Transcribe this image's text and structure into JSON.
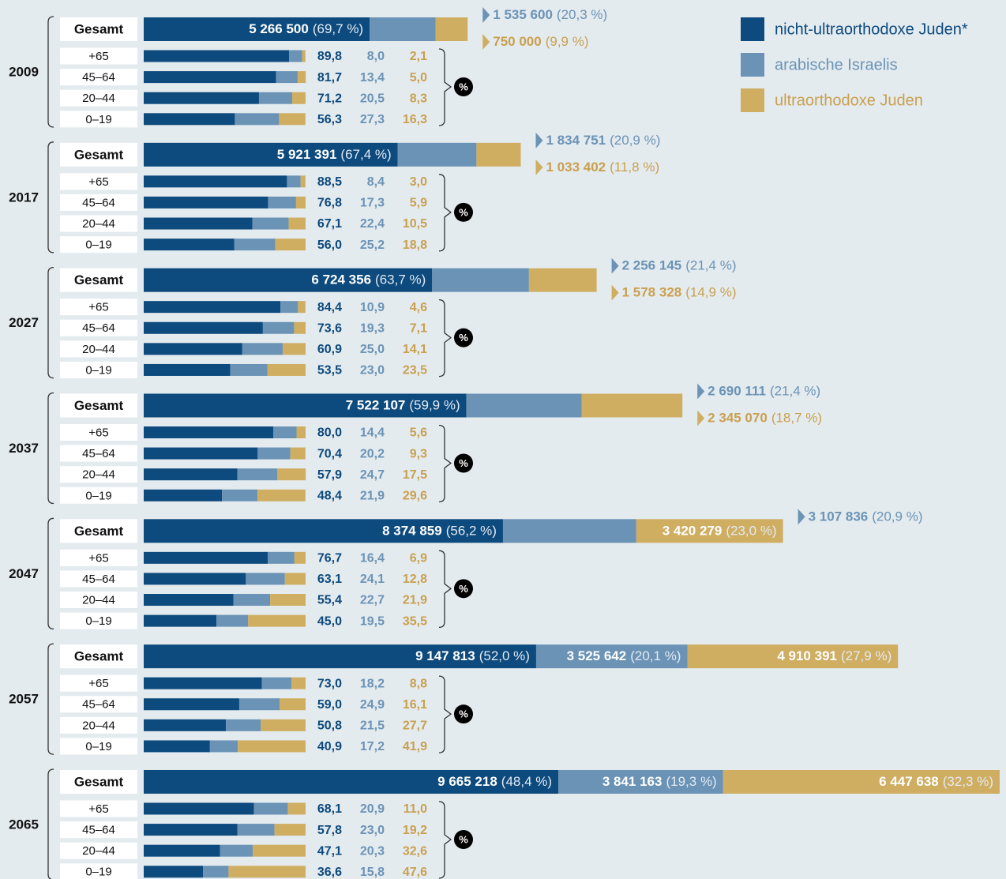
{
  "chart_data": {
    "type": "stacked_barh",
    "series": [
      {
        "name": "nicht-ultraorthodoxe Juden*",
        "color": "#0d4a7d",
        "text_color": "#0d4a7d"
      },
      {
        "name": "arabische Israelis",
        "color": "#6a93b6",
        "text_color": "#6a93b6"
      },
      {
        "name": "ultraorthodoxe Juden",
        "color": "#cfae62",
        "text_color": "#c9a04f"
      }
    ],
    "total_label": "Gesamt",
    "age_groups": [
      "+65",
      "45–64",
      "20–44",
      "0–19"
    ],
    "unit_badge": "%",
    "years": [
      {
        "year": "2009",
        "totals": [
          5266500,
          1535600,
          750000
        ],
        "total_labels": [
          "5 266 500",
          "1 535 600",
          "750 000"
        ],
        "shares": [
          69.7,
          20.3,
          9.9
        ],
        "share_labels": [
          "(69,7 %)",
          "(20,3 %)",
          "(9,9 %)"
        ],
        "ages": [
          {
            "values": [
              89.8,
              8.0,
              2.1
            ],
            "value_labels": [
              "89,8",
              "8,0",
              "2,1"
            ]
          },
          {
            "values": [
              81.7,
              13.4,
              5.0
            ],
            "value_labels": [
              "81,7",
              "13,4",
              "5,0"
            ]
          },
          {
            "values": [
              71.2,
              20.5,
              8.3
            ],
            "value_labels": [
              "71,2",
              "20,5",
              "8,3"
            ]
          },
          {
            "values": [
              56.3,
              27.3,
              16.3
            ],
            "value_labels": [
              "56,3",
              "27,3",
              "16,3"
            ]
          }
        ]
      },
      {
        "year": "2017",
        "totals": [
          5921391,
          1834751,
          1033402
        ],
        "total_labels": [
          "5 921 391",
          "1 834 751",
          "1 033 402"
        ],
        "shares": [
          67.4,
          20.9,
          11.8
        ],
        "share_labels": [
          "(67,4 %)",
          "(20,9 %)",
          "(11,8 %)"
        ],
        "ages": [
          {
            "values": [
              88.5,
              8.4,
              3.0
            ],
            "value_labels": [
              "88,5",
              "8,4",
              "3,0"
            ]
          },
          {
            "values": [
              76.8,
              17.3,
              5.9
            ],
            "value_labels": [
              "76,8",
              "17,3",
              "5,9"
            ]
          },
          {
            "values": [
              67.1,
              22.4,
              10.5
            ],
            "value_labels": [
              "67,1",
              "22,4",
              "10,5"
            ]
          },
          {
            "values": [
              56.0,
              25.2,
              18.8
            ],
            "value_labels": [
              "56,0",
              "25,2",
              "18,8"
            ]
          }
        ]
      },
      {
        "year": "2027",
        "totals": [
          6724356,
          2256145,
          1578328
        ],
        "total_labels": [
          "6 724 356",
          "2 256 145",
          "1 578 328"
        ],
        "shares": [
          63.7,
          21.4,
          14.9
        ],
        "share_labels": [
          "(63,7 %)",
          "(21,4 %)",
          "(14,9 %)"
        ],
        "ages": [
          {
            "values": [
              84.4,
              10.9,
              4.6
            ],
            "value_labels": [
              "84,4",
              "10,9",
              "4,6"
            ]
          },
          {
            "values": [
              73.6,
              19.3,
              7.1
            ],
            "value_labels": [
              "73,6",
              "19,3",
              "7,1"
            ]
          },
          {
            "values": [
              60.9,
              25.0,
              14.1
            ],
            "value_labels": [
              "60,9",
              "25,0",
              "14,1"
            ]
          },
          {
            "values": [
              53.5,
              23.0,
              23.5
            ],
            "value_labels": [
              "53,5",
              "23,0",
              "23,5"
            ]
          }
        ]
      },
      {
        "year": "2037",
        "totals": [
          7522107,
          2690111,
          2345070
        ],
        "total_labels": [
          "7 522 107",
          "2 690 111",
          "2 345 070"
        ],
        "shares": [
          59.9,
          21.4,
          18.7
        ],
        "share_labels": [
          "(59,9 %)",
          "(21,4 %)",
          "(18,7 %)"
        ],
        "ages": [
          {
            "values": [
              80.0,
              14.4,
              5.6
            ],
            "value_labels": [
              "80,0",
              "14,4",
              "5,6"
            ]
          },
          {
            "values": [
              70.4,
              20.2,
              9.3
            ],
            "value_labels": [
              "70,4",
              "20,2",
              "9,3"
            ]
          },
          {
            "values": [
              57.9,
              24.7,
              17.5
            ],
            "value_labels": [
              "57,9",
              "24,7",
              "17,5"
            ]
          },
          {
            "values": [
              48.4,
              21.9,
              29.6
            ],
            "value_labels": [
              "48,4",
              "21,9",
              "29,6"
            ]
          }
        ]
      },
      {
        "year": "2047",
        "totals": [
          8374859,
          3107836,
          3420279
        ],
        "total_labels": [
          "8 374 859",
          "3 107 836",
          "3 420 279"
        ],
        "shares": [
          56.2,
          20.9,
          23.0
        ],
        "share_labels": [
          "(56,2 %)",
          "(20,9 %)",
          "(23,0 %)"
        ],
        "ages": [
          {
            "values": [
              76.7,
              16.4,
              6.9
            ],
            "value_labels": [
              "76,7",
              "16,4",
              "6,9"
            ]
          },
          {
            "values": [
              63.1,
              24.1,
              12.8
            ],
            "value_labels": [
              "63,1",
              "24,1",
              "12,8"
            ]
          },
          {
            "values": [
              55.4,
              22.7,
              21.9
            ],
            "value_labels": [
              "55,4",
              "22,7",
              "21,9"
            ]
          },
          {
            "values": [
              45.0,
              19.5,
              35.5
            ],
            "value_labels": [
              "45,0",
              "19,5",
              "35,5"
            ]
          }
        ]
      },
      {
        "year": "2057",
        "totals": [
          9147813,
          3525642,
          4910391
        ],
        "total_labels": [
          "9 147 813",
          "3 525 642",
          "4 910 391"
        ],
        "shares": [
          52.0,
          20.1,
          27.9
        ],
        "share_labels": [
          "(52,0 %)",
          "(20,1 %)",
          "(27,9 %)"
        ],
        "ages": [
          {
            "values": [
              73.0,
              18.2,
              8.8
            ],
            "value_labels": [
              "73,0",
              "18,2",
              "8,8"
            ]
          },
          {
            "values": [
              59.0,
              24.9,
              16.1
            ],
            "value_labels": [
              "59,0",
              "24,9",
              "16,1"
            ]
          },
          {
            "values": [
              50.8,
              21.5,
              27.7
            ],
            "value_labels": [
              "50,8",
              "21,5",
              "27,7"
            ]
          },
          {
            "values": [
              40.9,
              17.2,
              41.9
            ],
            "value_labels": [
              "40,9",
              "17,2",
              "41,9"
            ]
          }
        ]
      },
      {
        "year": "2065",
        "totals": [
          9665218,
          3841163,
          6447638
        ],
        "total_labels": [
          "9 665 218",
          "3 841 163",
          "6 447 638"
        ],
        "shares": [
          48.4,
          19.3,
          32.3
        ],
        "share_labels": [
          "(48,4 %)",
          "(19,3 %)",
          "(32,3 %)"
        ],
        "ages": [
          {
            "values": [
              68.1,
              20.9,
              11.0
            ],
            "value_labels": [
              "68,1",
              "20,9",
              "11,0"
            ]
          },
          {
            "values": [
              57.8,
              23.0,
              19.2
            ],
            "value_labels": [
              "57,8",
              "23,0",
              "19,2"
            ]
          },
          {
            "values": [
              47.1,
              20.3,
              32.6
            ],
            "value_labels": [
              "47,1",
              "20,3",
              "32,6"
            ]
          },
          {
            "values": [
              36.6,
              15.8,
              47.6
            ],
            "value_labels": [
              "36,6",
              "15,8",
              "47,6"
            ]
          }
        ]
      }
    ]
  }
}
